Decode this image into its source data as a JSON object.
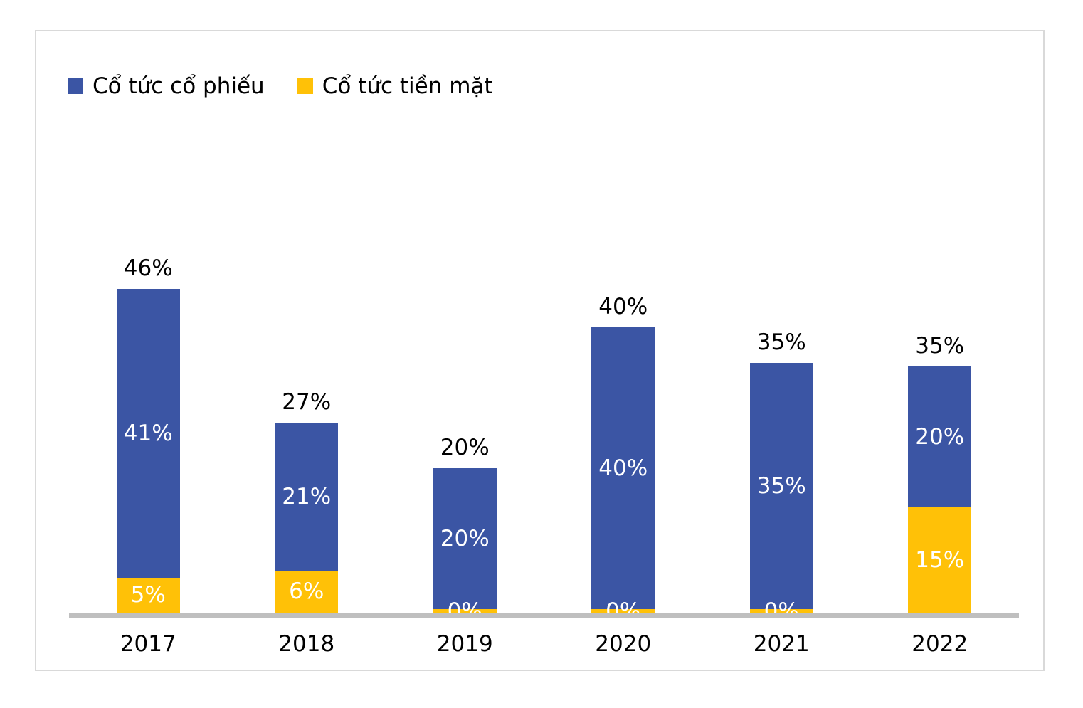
{
  "chart_data": {
    "type": "bar",
    "stacked": true,
    "title": "",
    "xlabel": "",
    "ylabel": "",
    "grid": false,
    "legend_position": "top-left",
    "value_suffix": "%",
    "ylim": [
      0,
      50
    ],
    "categories": [
      "2017",
      "2018",
      "2019",
      "2020",
      "2021",
      "2022"
    ],
    "series": [
      {
        "name": "Cổ tức cổ phiếu",
        "color": "#3b55a4",
        "values": [
          41,
          21,
          20,
          40,
          35,
          20
        ]
      },
      {
        "name": "Cổ tức tiền mặt",
        "color": "#ffc107",
        "values": [
          5,
          6,
          0,
          0,
          0,
          15
        ]
      }
    ],
    "totals": [
      46,
      27,
      20,
      40,
      35,
      35
    ],
    "stack_order_bottom_to_top": [
      "Cổ tức tiền mặt",
      "Cổ tức cổ phiếu"
    ]
  },
  "colors": {
    "bar_blue": "#3b55a4",
    "bar_yellow": "#ffc107",
    "baseline_gray": "#bfbfbf",
    "panel_border": "#d9d9d9",
    "label_inside": "#ffffff",
    "label_outside": "#000000"
  }
}
